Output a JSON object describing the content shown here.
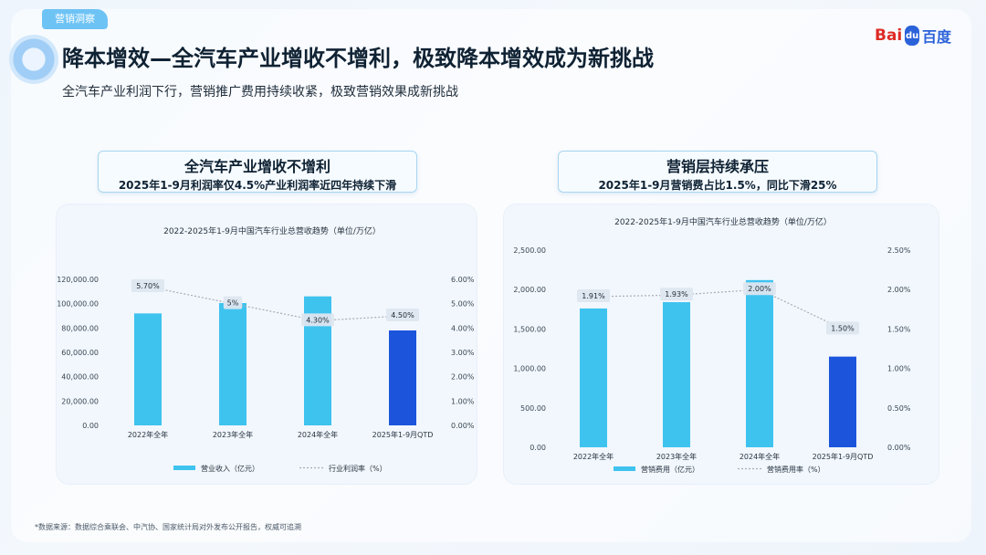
{
  "header": {
    "tag": "营销洞察",
    "title": "降本增效—全汽车产业增收不增利，极致降本增效成为新挑战",
    "subtitle": "全汽车产业利润下行，营销推广费用持续收紧，极致营销效果成新挑战",
    "logo": {
      "part1": "Bai",
      "paw": "du",
      "part2": "百度"
    }
  },
  "left_header": {
    "line1": "全汽车产业增收不增利",
    "line2": "2025年1-9月利润率仅4.5%产业利润率近四年持续下滑"
  },
  "right_header": {
    "line1": "营销层持续承压",
    "line2": "2025年1-9月营销费占比1.5%，同比下滑25%"
  },
  "footnote": "*数据来源：数据综合乘联会、中汽协、国家统计局对外发布公开报告，权威可追溯",
  "colors": {
    "bar": "#3ec3ef",
    "bar_highlight": "#1c55db",
    "line": "#a7adb3"
  },
  "chart_data": [
    {
      "type": "bar",
      "title": "2022-2025年1-9月中国汽车行业总营收趋势（单位/万亿）",
      "categories": [
        "2022年全年",
        "2023年全年",
        "2024年全年",
        "2025年1-9月QTD"
      ],
      "series": [
        {
          "name": "营业收入（亿元）",
          "type": "bar",
          "axis": "left",
          "values": [
            92000,
            100500,
            106000,
            78000
          ]
        },
        {
          "name": "行业利润率（%）",
          "type": "line",
          "axis": "right",
          "values": [
            5.7,
            5.0,
            4.3,
            4.5
          ],
          "labels": [
            "5.70%",
            "5%",
            "4.30%",
            "4.50%"
          ]
        }
      ],
      "yleft": {
        "ticks": [
          "0.00",
          "20,000.00",
          "40,000.00",
          "60,000.00",
          "80,000.00",
          "100,000.00",
          "120,000.00"
        ],
        "range": [
          0,
          120000
        ]
      },
      "yright": {
        "ticks": [
          "0.00%",
          "1.00%",
          "2.00%",
          "3.00%",
          "4.00%",
          "5.00%",
          "6.00%"
        ],
        "range": [
          0,
          6
        ]
      },
      "highlight_last": true,
      "legend": "bottom"
    },
    {
      "type": "bar",
      "title": "2022-2025年1-9月中国汽车行业总营收趋势（单位/万亿）",
      "categories": [
        "2022年全年",
        "2023年全年",
        "2024年全年",
        "2025年1-9月QTD"
      ],
      "series": [
        {
          "name": "营销费用（亿元）",
          "type": "bar",
          "axis": "left",
          "values": [
            1760,
            1840,
            2120,
            1150
          ]
        },
        {
          "name": "营销费用率（%）",
          "type": "line",
          "axis": "right",
          "values": [
            1.91,
            1.93,
            2.0,
            1.5
          ],
          "labels": [
            "1.91%",
            "1.93%",
            "2.00%",
            "1.50%"
          ]
        }
      ],
      "yleft": {
        "ticks": [
          "0.00",
          "500.00",
          "1,000.00",
          "1,500.00",
          "2,000.00",
          "2,500.00"
        ],
        "range": [
          0,
          2500
        ]
      },
      "yright": {
        "ticks": [
          "0.00%",
          "0.50%",
          "1.00%",
          "1.50%",
          "2.00%",
          "2.50%"
        ],
        "range": [
          0,
          2.5
        ]
      },
      "highlight_last": true,
      "legend": "bottom"
    }
  ]
}
